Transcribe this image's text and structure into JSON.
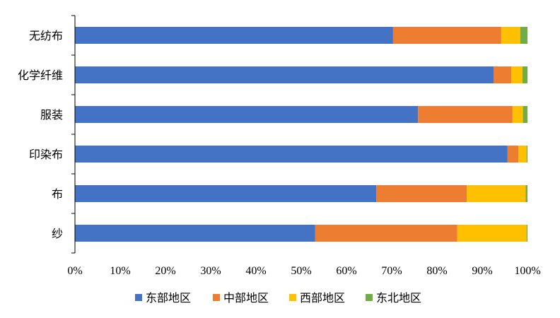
{
  "chart_data": {
    "type": "bar",
    "orientation": "horizontal",
    "stacked": "percent",
    "categories": [
      "无纺布",
      "化学纤维",
      "服装",
      "印染布",
      "布",
      "纱"
    ],
    "series": [
      {
        "name": "东部地区",
        "color": "#4472C4",
        "values": [
          70.3,
          92.5,
          75.8,
          95.6,
          66.6,
          53.1
        ]
      },
      {
        "name": "中部地区",
        "color": "#ED7D31",
        "values": [
          23.9,
          3.9,
          20.9,
          2.4,
          20.0,
          31.4
        ]
      },
      {
        "name": "西部地区",
        "color": "#FFC000",
        "values": [
          4.2,
          2.5,
          2.3,
          1.8,
          13.0,
          15.3
        ]
      },
      {
        "name": "东北地区",
        "color": "#70AD47",
        "values": [
          1.6,
          1.1,
          1.0,
          0.2,
          0.4,
          0.2
        ]
      }
    ],
    "xticks": [
      "0%",
      "10%",
      "20%",
      "30%",
      "40%",
      "50%",
      "60%",
      "70%",
      "80%",
      "90%",
      "100%"
    ],
    "xlim": [
      0,
      100
    ],
    "title": "",
    "xlabel": "",
    "ylabel": "",
    "grid": false,
    "legend": "bottom"
  }
}
